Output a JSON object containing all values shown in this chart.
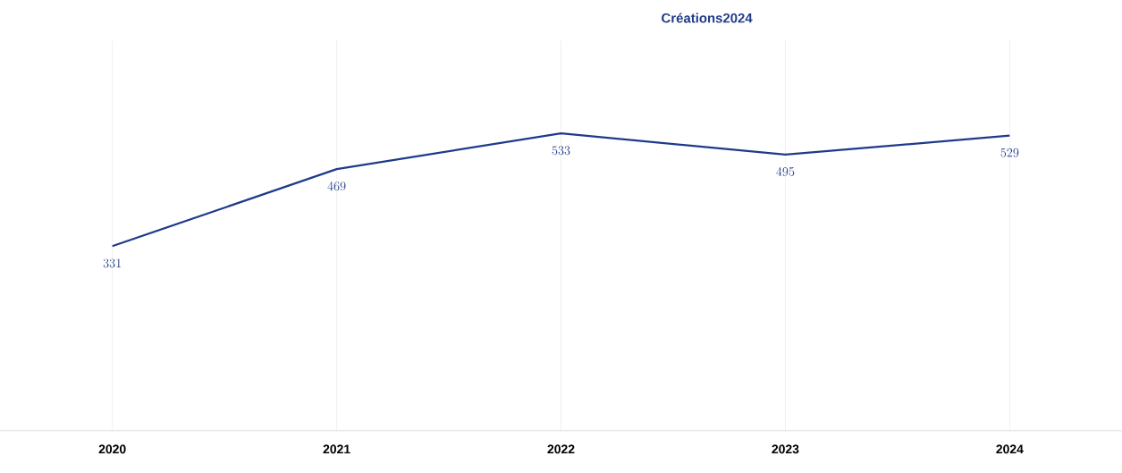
{
  "chart_data": {
    "type": "line",
    "title": "Créations2024",
    "categories": [
      "2020",
      "2021",
      "2022",
      "2023",
      "2024"
    ],
    "values": [
      331,
      469,
      533,
      495,
      529
    ],
    "color": "#1f3a8a",
    "data_labels": true,
    "grid": "x",
    "ylim": [
      0,
      700
    ],
    "marker": "none",
    "line_style": "solid"
  }
}
